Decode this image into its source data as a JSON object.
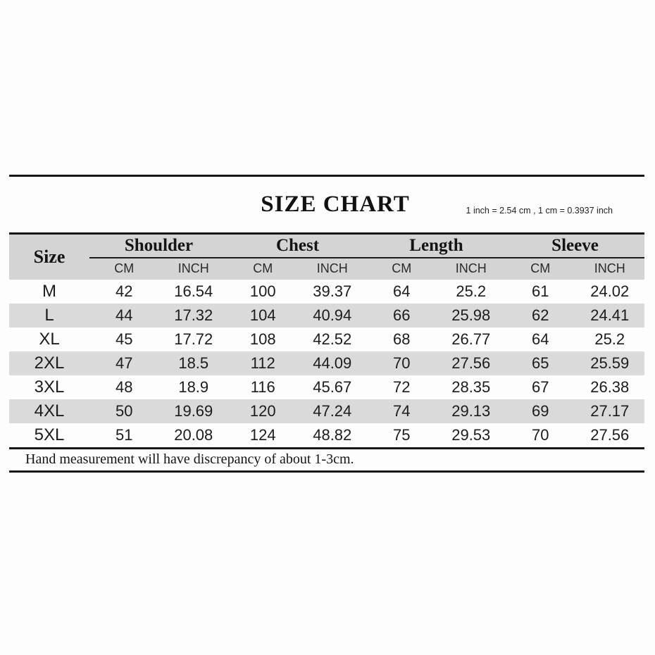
{
  "chart_data": {
    "type": "table",
    "title": "SIZE CHART",
    "conversion_note": "1 inch = 2.54 cm , 1 cm = 0.3937 inch",
    "row_header": "Size",
    "column_groups": [
      {
        "label": "Shoulder",
        "units": [
          "CM",
          "INCH"
        ]
      },
      {
        "label": "Chest",
        "units": [
          "CM",
          "INCH"
        ]
      },
      {
        "label": "Length",
        "units": [
          "CM",
          "INCH"
        ]
      },
      {
        "label": "Sleeve",
        "units": [
          "CM",
          "INCH"
        ]
      }
    ],
    "value_keys": [
      "shoulder_cm",
      "shoulder_inch",
      "chest_cm",
      "chest_inch",
      "length_cm",
      "length_inch",
      "sleeve_cm",
      "sleeve_inch"
    ],
    "rows": [
      {
        "size": "M",
        "shoulder_cm": 42,
        "shoulder_inch": 16.54,
        "chest_cm": 100,
        "chest_inch": 39.37,
        "length_cm": 64,
        "length_inch": 25.2,
        "sleeve_cm": 61,
        "sleeve_inch": 24.02
      },
      {
        "size": "L",
        "shoulder_cm": 44,
        "shoulder_inch": 17.32,
        "chest_cm": 104,
        "chest_inch": 40.94,
        "length_cm": 66,
        "length_inch": 25.98,
        "sleeve_cm": 62,
        "sleeve_inch": 24.41
      },
      {
        "size": "XL",
        "shoulder_cm": 45,
        "shoulder_inch": 17.72,
        "chest_cm": 108,
        "chest_inch": 42.52,
        "length_cm": 68,
        "length_inch": 26.77,
        "sleeve_cm": 64,
        "sleeve_inch": 25.2
      },
      {
        "size": "2XL",
        "shoulder_cm": 47,
        "shoulder_inch": 18.5,
        "chest_cm": 112,
        "chest_inch": 44.09,
        "length_cm": 70,
        "length_inch": 27.56,
        "sleeve_cm": 65,
        "sleeve_inch": 25.59
      },
      {
        "size": "3XL",
        "shoulder_cm": 48,
        "shoulder_inch": 18.9,
        "chest_cm": 116,
        "chest_inch": 45.67,
        "length_cm": 72,
        "length_inch": 28.35,
        "sleeve_cm": 67,
        "sleeve_inch": 26.38
      },
      {
        "size": "4XL",
        "shoulder_cm": 50,
        "shoulder_inch": 19.69,
        "chest_cm": 120,
        "chest_inch": 47.24,
        "length_cm": 74,
        "length_inch": 29.13,
        "sleeve_cm": 69,
        "sleeve_inch": 27.17
      },
      {
        "size": "5XL",
        "shoulder_cm": 51,
        "shoulder_inch": 20.08,
        "chest_cm": 124,
        "chest_inch": 48.82,
        "length_cm": 75,
        "length_inch": 29.53,
        "sleeve_cm": 70,
        "sleeve_inch": 27.56
      }
    ],
    "footer_note": "Hand measurement will have discrepancy of about 1-3cm."
  },
  "colors": {
    "rule": "#161616",
    "header_bg": "#d4d4d4",
    "row_alt_bg": "#dadada",
    "text": "#1c1c1c",
    "background": "#fdfdfd"
  }
}
